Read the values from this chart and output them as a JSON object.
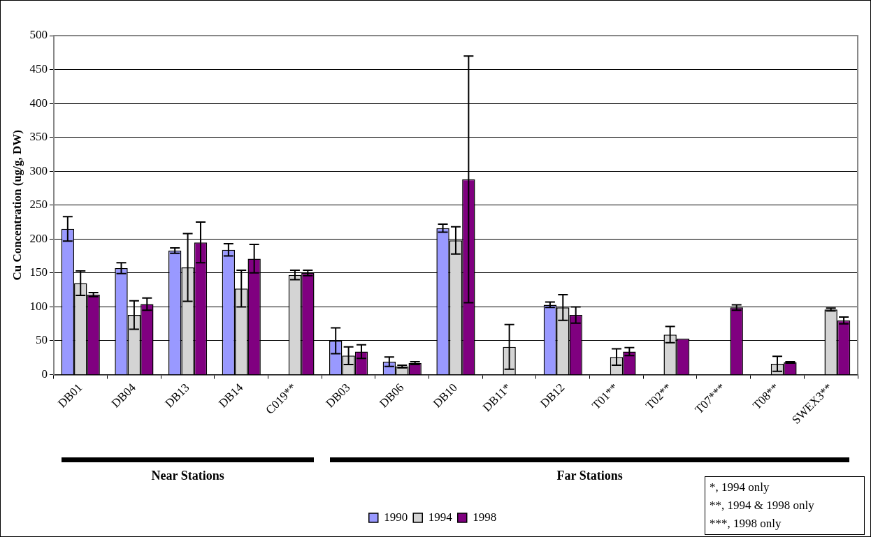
{
  "chart_data": {
    "type": "bar",
    "ylabel": "Cu Concentration (ug/g, DW)",
    "categories": [
      "DB01",
      "DB04",
      "DB13",
      "DB14",
      "C019**",
      "DB03",
      "DB06",
      "DB10",
      "DB11*",
      "DB12",
      "T01**",
      "T02**",
      "T07***",
      "T08**",
      "SWEX3**"
    ],
    "series": [
      {
        "name": "1990",
        "color": "#9999ff",
        "values": [
          215,
          157,
          183,
          184,
          null,
          50,
          19,
          216,
          null,
          103,
          null,
          null,
          null,
          null,
          null
        ],
        "errors": [
          18,
          8,
          4,
          9,
          null,
          19,
          7,
          6,
          null,
          4,
          null,
          null,
          null,
          null,
          null
        ]
      },
      {
        "name": "1994",
        "color": "#d4d4d4",
        "values": [
          135,
          88,
          158,
          127,
          147,
          28,
          12,
          198,
          41,
          99,
          26,
          59,
          null,
          16,
          96
        ],
        "errors": [
          18,
          21,
          50,
          27,
          7,
          13,
          2,
          20,
          33,
          19,
          12,
          12,
          null,
          11,
          2
        ]
      },
      {
        "name": "1998",
        "color": "#800080",
        "values": [
          118,
          104,
          195,
          171,
          150,
          34,
          17,
          288,
          null,
          88,
          34,
          53,
          99,
          18,
          80
        ],
        "errors": [
          3,
          9,
          30,
          21,
          4,
          10,
          2,
          182,
          null,
          12,
          6,
          null,
          4,
          1,
          5
        ]
      }
    ],
    "ylim": [
      0,
      500
    ],
    "yticks": [
      0,
      50,
      100,
      150,
      200,
      250,
      300,
      350,
      400,
      450,
      500
    ],
    "grid": "y",
    "legend": "bottom",
    "annotations": [
      "Near Stations",
      "Far Stations",
      "*, 1994 only",
      "**, 1994 & 1998 only",
      "***, 1998 only"
    ]
  }
}
